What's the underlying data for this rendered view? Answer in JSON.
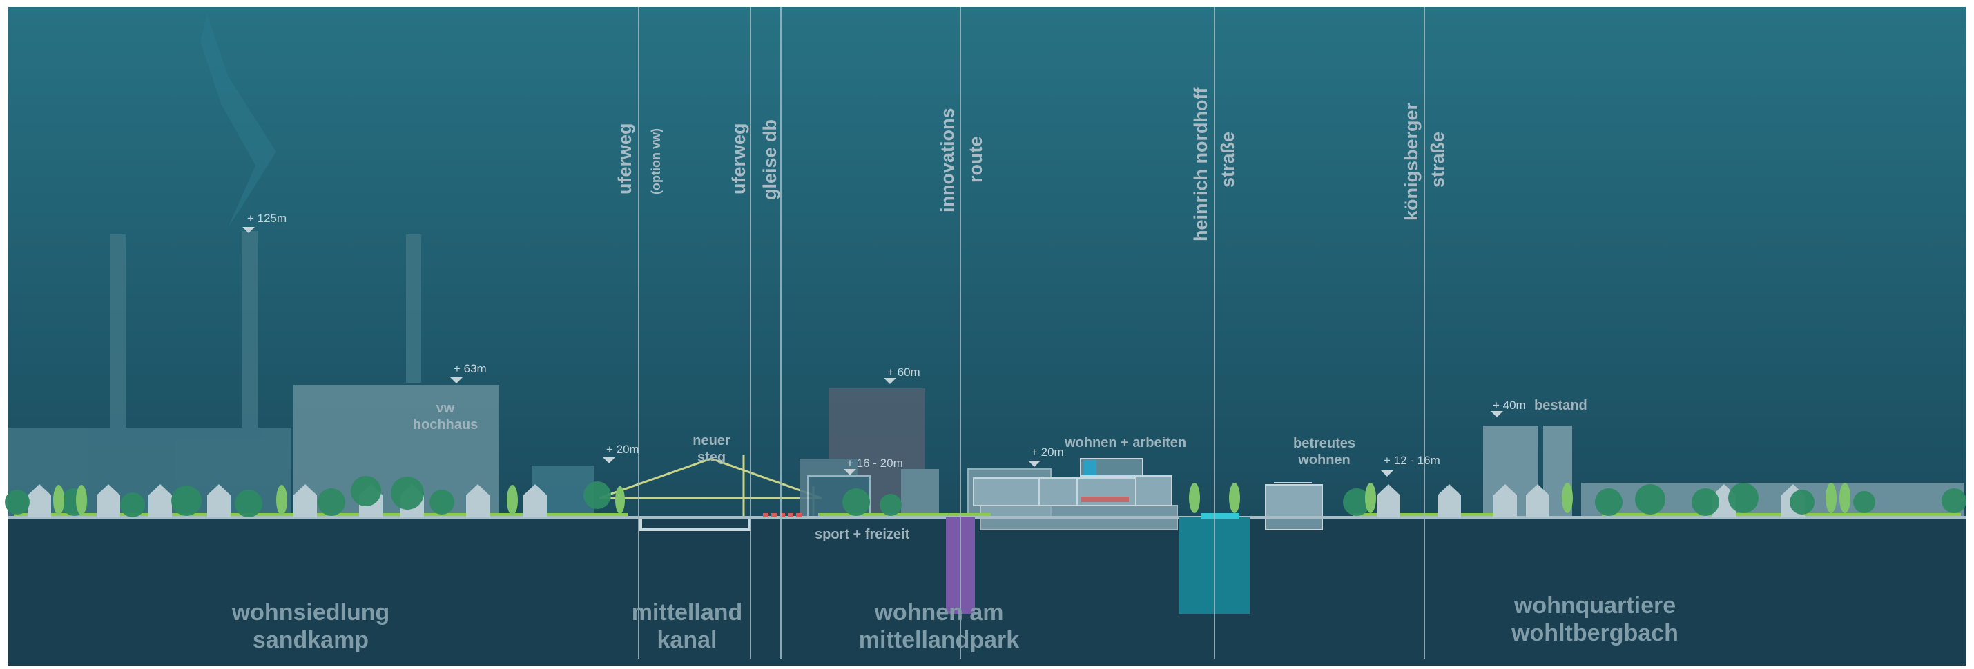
{
  "section_labels": {
    "uferweg_1": "uferweg",
    "option_vw": "(option vw)",
    "uferweg_2": "uferweg",
    "gleise_db": "gleise db",
    "innovations": "innovations",
    "route": "route",
    "heinrich": "heinrich nordhoff",
    "strasse_1": "straße",
    "koenigsberger": "königsberger",
    "strasse_2": "straße"
  },
  "elevations": {
    "e125": "+ 125m",
    "e63": "+ 63m",
    "e20a": "+ 20m",
    "e60": "+ 60m",
    "e16": "+ 16 - 20m",
    "e20b": "+ 20m",
    "e12": "+ 12 - 16m",
    "e40": "+ 40m"
  },
  "building_labels": {
    "vw_1": "vw",
    "vw_2": "hochhaus",
    "steg_1": "neuer",
    "steg_2": "steg",
    "wohnen_arbeiten": "wohnen + arbeiten",
    "betreutes_1": "betreutes",
    "betreutes_2": "wohnen",
    "bestand": "bestand",
    "sport": "sport + freizeit"
  },
  "districts": {
    "sandkamp_1": "wohnsiedlung",
    "sandkamp_2": "sandkamp",
    "kanal_1": "mittelland",
    "kanal_2": "kanal",
    "park_1": "wohnen am",
    "park_2": "mittellandpark",
    "wohlt_1": "wohnquartiere",
    "wohlt_2": "wohltbergbach"
  },
  "colors": {
    "sky_top": "#266f82",
    "sky_bottom": "#1a4a5c",
    "ground": "#193e4f",
    "building": "#8aa9b6",
    "tree_dark": "#2f8a64",
    "tree_light": "#7fc46a",
    "tunnel_purple": "#7a5aa8",
    "tunnel_teal": "#177f8f",
    "green_strip": "#8ccb4a"
  }
}
